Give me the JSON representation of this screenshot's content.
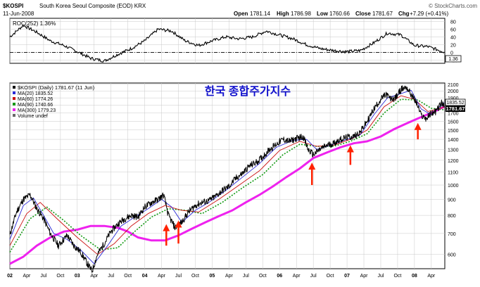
{
  "header": {
    "symbol": "$KOSPI",
    "name": "South Korea Seoul Composite (EOD)  KRX",
    "date": "11-Jun-2008",
    "open_label": "Open",
    "open": "1781.14",
    "high_label": "High",
    "high": "1786.98",
    "low_label": "Low",
    "low": "1760.66",
    "close_label": "Close",
    "close": "1781.67",
    "chg_label": "Chg",
    "chg": "+7.29 (+0.41%)",
    "brand": "© StockCharts.com",
    "overlay_title": "한국 종합주가지수"
  },
  "colors": {
    "price": "#000000",
    "ma20": "#2a2ad8",
    "ma60": "#cc1010",
    "ma90": "#119911",
    "ma300": "#ee22ee",
    "arrow": "#ff2200",
    "title": "#1010cc",
    "grid": "#c8c8c8"
  },
  "chart_data": [
    {
      "type": "line",
      "title": "ROC(252) 1.36%",
      "legend": "ROC(252) 1.36%",
      "last_value_label": "1.36",
      "yticks": [
        80,
        60,
        40,
        20,
        0,
        -20
      ],
      "ylim": [
        -28,
        88
      ],
      "x": [
        2002.0,
        2002.2,
        2002.4,
        2002.6,
        2002.8,
        2003.0,
        2003.2,
        2003.4,
        2003.6,
        2003.8,
        2004.0,
        2004.2,
        2004.4,
        2004.6,
        2004.8,
        2005.0,
        2005.2,
        2005.4,
        2005.6,
        2005.8,
        2006.0,
        2006.2,
        2006.4,
        2006.6,
        2006.8,
        2007.0,
        2007.2,
        2007.4,
        2007.6,
        2007.8,
        2008.0,
        2008.2,
        2008.44
      ],
      "values": [
        40,
        70,
        52,
        30,
        18,
        2,
        -15,
        -22,
        -5,
        10,
        30,
        60,
        55,
        30,
        18,
        30,
        40,
        35,
        40,
        55,
        45,
        35,
        20,
        10,
        5,
        2,
        5,
        25,
        50,
        45,
        18,
        15,
        1.36
      ]
    },
    {
      "type": "line",
      "title": "$KOSPI (Daily) 1781.67 (11 Jun)",
      "legend": [
        {
          "name": "$KOSPI (Daily) 1781.67 (11 Jun)"
        },
        {
          "name": "MA(20) 1835.52"
        },
        {
          "name": "MA(60) 1774.26"
        },
        {
          "name": "MA(90) 1740.66"
        },
        {
          "name": "MA(300) 1779.23"
        },
        {
          "name": "Volume undef"
        }
      ],
      "yscale": "log",
      "ylim": [
        540,
        2120
      ],
      "yticks": [
        2100,
        2000,
        1900,
        1800,
        1700,
        1600,
        1500,
        1400,
        1300,
        1200,
        1100,
        1000,
        900,
        800,
        700,
        600
      ],
      "x_tick_labels": [
        "02",
        "Apr",
        "Jul",
        "Oct",
        "03",
        "Apr",
        "Jul",
        "Oct",
        "04",
        "Apr",
        "Jul",
        "Oct",
        "05",
        "Apr",
        "Jul",
        "Oct",
        "06",
        "Apr",
        "Jul",
        "Oct",
        "07",
        "Apr",
        "Jul",
        "Oct",
        "08",
        "Apr"
      ],
      "x_tick_years": [
        2002.0,
        2002.25,
        2002.5,
        2002.75,
        2003.0,
        2003.25,
        2003.5,
        2003.75,
        2004.0,
        2004.25,
        2004.5,
        2004.75,
        2005.0,
        2005.25,
        2005.5,
        2005.75,
        2006.0,
        2006.25,
        2006.5,
        2006.75,
        2007.0,
        2007.25,
        2007.5,
        2007.75,
        2008.0,
        2008.25
      ],
      "x_range": [
        2002.0,
        2008.45
      ],
      "series": [
        {
          "name": "$KOSPI",
          "x": [
            2002.0,
            2002.1,
            2002.2,
            2002.3,
            2002.4,
            2002.5,
            2002.6,
            2002.72,
            2002.85,
            2002.95,
            2003.05,
            2003.15,
            2003.22,
            2003.3,
            2003.4,
            2003.5,
            2003.6,
            2003.7,
            2003.8,
            2003.9,
            2004.0,
            2004.1,
            2004.2,
            2004.28,
            2004.35,
            2004.45,
            2004.55,
            2004.65,
            2004.75,
            2004.85,
            2004.95,
            2005.05,
            2005.15,
            2005.25,
            2005.35,
            2005.45,
            2005.55,
            2005.65,
            2005.75,
            2005.85,
            2005.95,
            2006.05,
            2006.15,
            2006.25,
            2006.35,
            2006.42,
            2006.5,
            2006.6,
            2006.7,
            2006.8,
            2006.9,
            2007.0,
            2007.1,
            2007.2,
            2007.3,
            2007.4,
            2007.5,
            2007.58,
            2007.65,
            2007.72,
            2007.8,
            2007.88,
            2007.95,
            2008.03,
            2008.1,
            2008.18,
            2008.25,
            2008.32,
            2008.4,
            2008.44
          ],
          "values": [
            690,
            820,
            900,
            930,
            840,
            780,
            700,
            640,
            690,
            640,
            610,
            560,
            530,
            600,
            650,
            710,
            750,
            780,
            800,
            790,
            850,
            880,
            900,
            930,
            800,
            730,
            760,
            820,
            860,
            880,
            890,
            920,
            960,
            990,
            1050,
            1090,
            1150,
            1180,
            1230,
            1300,
            1350,
            1400,
            1380,
            1410,
            1430,
            1300,
            1250,
            1300,
            1340,
            1360,
            1400,
            1420,
            1430,
            1480,
            1600,
            1750,
            1880,
            1950,
            1880,
            1900,
            2020,
            2060,
            1950,
            1830,
            1670,
            1630,
            1700,
            1720,
            1830,
            1781.67
          ]
        },
        {
          "name": "MA(20)",
          "x": [
            2002.0,
            2002.2,
            2002.35,
            2002.5,
            2002.65,
            2002.85,
            2003.05,
            2003.25,
            2003.45,
            2003.65,
            2003.85,
            2004.05,
            2004.25,
            2004.4,
            2004.55,
            2004.75,
            2004.95,
            2005.2,
            2005.45,
            2005.7,
            2005.95,
            2006.2,
            2006.4,
            2006.55,
            2006.75,
            2007.0,
            2007.2,
            2007.4,
            2007.6,
            2007.8,
            2007.95,
            2008.1,
            2008.25,
            2008.44
          ],
          "values": [
            670,
            860,
            910,
            800,
            700,
            670,
            620,
            560,
            640,
            740,
            790,
            840,
            900,
            850,
            760,
            830,
            880,
            960,
            1060,
            1170,
            1320,
            1390,
            1400,
            1300,
            1340,
            1400,
            1450,
            1680,
            1900,
            1960,
            2010,
            1750,
            1680,
            1835.52
          ]
        },
        {
          "name": "MA(60)",
          "x": [
            2002.0,
            2002.25,
            2002.45,
            2002.7,
            2003.0,
            2003.3,
            2003.55,
            2003.8,
            2004.05,
            2004.3,
            2004.55,
            2004.8,
            2005.1,
            2005.4,
            2005.7,
            2006.0,
            2006.3,
            2006.55,
            2006.8,
            2007.05,
            2007.3,
            2007.55,
            2007.8,
            2008.0,
            2008.2,
            2008.44
          ],
          "values": [
            640,
            810,
            880,
            780,
            680,
            600,
            650,
            740,
            810,
            860,
            830,
            820,
            900,
            1000,
            1110,
            1290,
            1380,
            1330,
            1340,
            1400,
            1500,
            1780,
            1930,
            1880,
            1720,
            1774.26
          ]
        },
        {
          "name": "MA(90)",
          "x": [
            2002.0,
            2002.3,
            2002.55,
            2002.8,
            2003.05,
            2003.35,
            2003.6,
            2003.85,
            2004.1,
            2004.35,
            2004.6,
            2004.85,
            2005.15,
            2005.45,
            2005.75,
            2006.05,
            2006.3,
            2006.55,
            2006.8,
            2007.05,
            2007.3,
            2007.55,
            2007.8,
            2008.05,
            2008.25,
            2008.44
          ],
          "values": [
            610,
            780,
            850,
            770,
            690,
            620,
            630,
            710,
            790,
            840,
            830,
            810,
            880,
            980,
            1080,
            1250,
            1350,
            1330,
            1330,
            1380,
            1460,
            1700,
            1880,
            1870,
            1760,
            1740.66
          ]
        },
        {
          "name": "MA(300)",
          "x": [
            2002.0,
            2002.2,
            2002.4,
            2002.6,
            2002.8,
            2003.0,
            2003.2,
            2003.4,
            2003.6,
            2003.75,
            2003.9,
            2004.1,
            2004.3,
            2004.5,
            2004.7,
            2004.9,
            2005.1,
            2005.3,
            2005.5,
            2005.7,
            2005.9,
            2006.1,
            2006.3,
            2006.5,
            2006.7,
            2006.9,
            2007.1,
            2007.3,
            2007.5,
            2007.7,
            2007.9,
            2008.1,
            2008.3,
            2008.44
          ],
          "values": [
            560,
            590,
            640,
            680,
            710,
            720,
            740,
            740,
            730,
            710,
            680,
            665,
            665,
            690,
            725,
            760,
            795,
            830,
            880,
            930,
            990,
            1060,
            1130,
            1220,
            1270,
            1320,
            1360,
            1380,
            1430,
            1510,
            1580,
            1650,
            1720,
            1779.23
          ]
        }
      ],
      "last_value_labels": [
        "1835.52",
        "1781.67"
      ],
      "annotations": [
        {
          "type": "arrow",
          "x": 2004.32,
          "y_from": 640,
          "y_to": 750
        },
        {
          "type": "arrow",
          "x": 2004.5,
          "y_from": 650,
          "y_to": 770
        },
        {
          "type": "arrow",
          "x": 2006.48,
          "y_from": 1000,
          "y_to": 1180
        },
        {
          "type": "arrow",
          "x": 2007.05,
          "y_from": 1160,
          "y_to": 1340
        },
        {
          "type": "arrow",
          "x": 2008.05,
          "y_from": 1400,
          "y_to": 1580
        }
      ]
    }
  ]
}
